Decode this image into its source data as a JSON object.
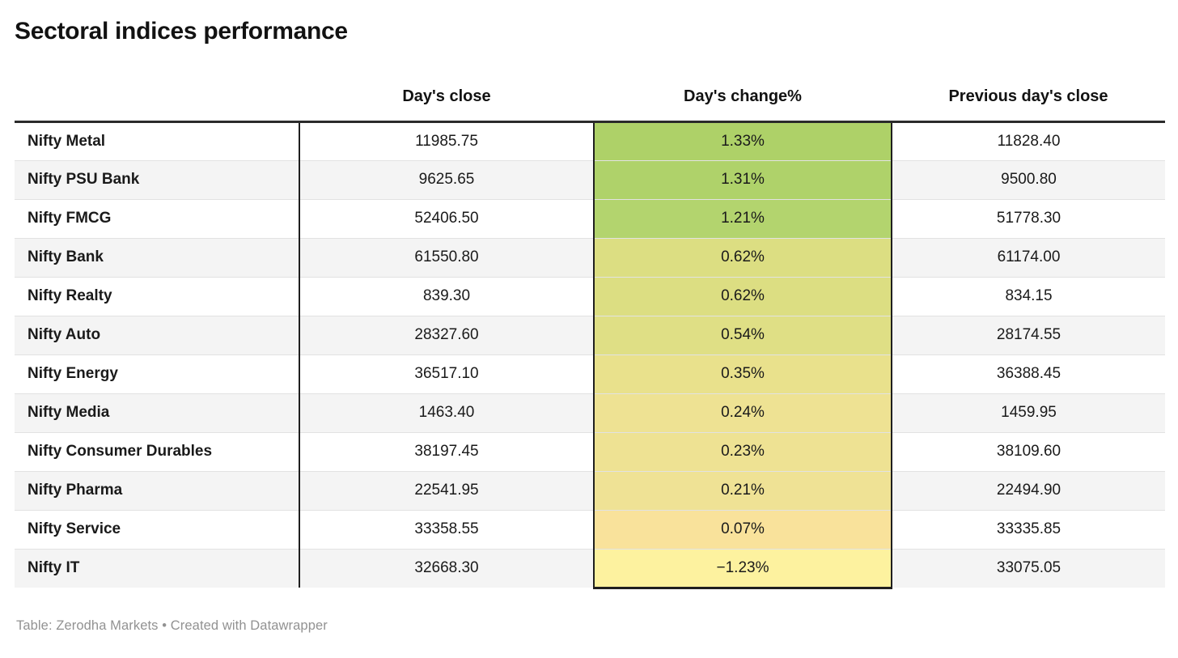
{
  "title": "Sectoral indices performance",
  "chart_data": {
    "type": "table",
    "title": "Sectoral indices performance",
    "columns": [
      "",
      "Day's close",
      "Day's change%",
      "Previous day's close"
    ],
    "rows": [
      {
        "name": "Nifty Metal",
        "close": "11985.75",
        "change": "1.33%",
        "change_value": 1.33,
        "change_color": "#aed168",
        "prev": "11828.40"
      },
      {
        "name": "Nifty PSU Bank",
        "close": "9625.65",
        "change": "1.31%",
        "change_value": 1.31,
        "change_color": "#afd26a",
        "prev": "9500.80"
      },
      {
        "name": "Nifty FMCG",
        "close": "52406.50",
        "change": "1.21%",
        "change_value": 1.21,
        "change_color": "#b3d46e",
        "prev": "51778.30"
      },
      {
        "name": "Nifty Bank",
        "close": "61550.80",
        "change": "0.62%",
        "change_value": 0.62,
        "change_color": "#dcde82",
        "prev": "61174.00"
      },
      {
        "name": "Nifty Realty",
        "close": "839.30",
        "change": "0.62%",
        "change_value": 0.62,
        "change_color": "#dcde82",
        "prev": "834.15"
      },
      {
        "name": "Nifty Auto",
        "close": "28327.60",
        "change": "0.54%",
        "change_value": 0.54,
        "change_color": "#dfdf85",
        "prev": "28174.55"
      },
      {
        "name": "Nifty Energy",
        "close": "36517.10",
        "change": "0.35%",
        "change_value": 0.35,
        "change_color": "#e9e18c",
        "prev": "36388.45"
      },
      {
        "name": "Nifty Media",
        "close": "1463.40",
        "change": "0.24%",
        "change_value": 0.24,
        "change_color": "#eee293",
        "prev": "1459.95"
      },
      {
        "name": "Nifty Consumer Durables",
        "close": "38197.45",
        "change": "0.23%",
        "change_value": 0.23,
        "change_color": "#eee293",
        "prev": "38109.60"
      },
      {
        "name": "Nifty Pharma",
        "close": "22541.95",
        "change": "0.21%",
        "change_value": 0.21,
        "change_color": "#efe295",
        "prev": "22494.90"
      },
      {
        "name": "Nifty Service",
        "close": "33358.55",
        "change": "0.07%",
        "change_value": 0.07,
        "change_color": "#f9e29b",
        "prev": "33335.85"
      },
      {
        "name": "Nifty IT",
        "close": "32668.30",
        "change": "−1.23%",
        "change_value": -1.23,
        "change_color": "#fdf29f",
        "prev": "33075.05"
      }
    ],
    "layout": {
      "row_stripe_colors": [
        "#ffffff",
        "#f4f4f4"
      ],
      "heatmap_column": "Day's change%",
      "color_scale": {
        "negative": "#fdf29f",
        "near_zero": "#f9e29b",
        "high_positive": "#aed168"
      }
    }
  },
  "footer": {
    "credit": "Table: Zerodha Markets • Created with Datawrapper"
  }
}
